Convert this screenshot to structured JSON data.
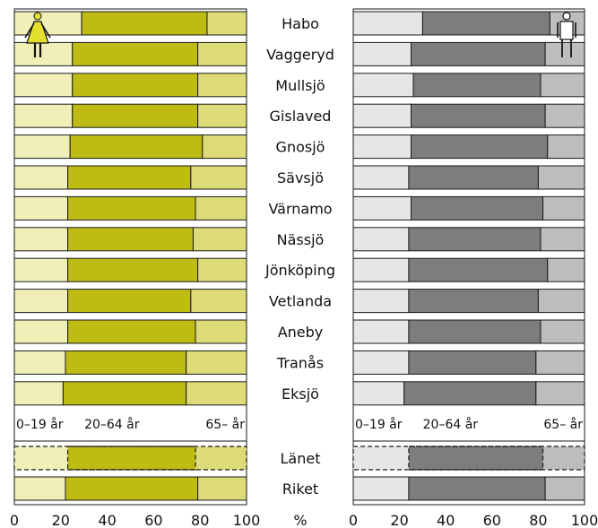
{
  "chart_data": {
    "type": "bar",
    "stacked": true,
    "orientation": "horizontal",
    "unit_label": "%",
    "xlim": [
      0,
      100
    ],
    "xticks": [
      "0",
      "20",
      "40",
      "60",
      "80",
      "100"
    ],
    "segment_labels": [
      "0–19 år",
      "20–64 år",
      "65– år"
    ],
    "categories": [
      "Habo",
      "Vaggeryd",
      "Mullsjö",
      "Gislaved",
      "Gnosjö",
      "Sävsjö",
      "Värnamo",
      "Nässjö",
      "Jönköping",
      "Vetlanda",
      "Aneby",
      "Tranås",
      "Eksjö"
    ],
    "summary_categories": [
      "Länet",
      "Riket"
    ],
    "panels": [
      {
        "side": "left",
        "icon": "woman-icon",
        "colors": [
          "#f0efb8",
          "#bdbb14",
          "#dcdb78"
        ],
        "boundaries": [
          [
            29,
            83
          ],
          [
            25,
            79
          ],
          [
            25,
            79
          ],
          [
            25,
            79
          ],
          [
            24,
            81
          ],
          [
            23,
            76
          ],
          [
            23,
            78
          ],
          [
            23,
            77
          ],
          [
            23,
            79
          ],
          [
            23,
            76
          ],
          [
            23,
            78
          ],
          [
            22,
            74
          ],
          [
            21,
            74
          ]
        ],
        "summary_boundaries": [
          [
            23,
            78
          ],
          [
            22,
            79
          ]
        ]
      },
      {
        "side": "right",
        "icon": "man-icon",
        "colors": [
          "#e6e6e8",
          "#7d7d80",
          "#bdbdc0"
        ],
        "boundaries": [
          [
            30,
            85
          ],
          [
            25,
            83
          ],
          [
            26,
            81
          ],
          [
            25,
            83
          ],
          [
            25,
            84
          ],
          [
            24,
            80
          ],
          [
            25,
            82
          ],
          [
            24,
            81
          ],
          [
            24,
            84
          ],
          [
            24,
            80
          ],
          [
            24,
            81
          ],
          [
            24,
            79
          ],
          [
            22,
            79
          ]
        ],
        "summary_boundaries": [
          [
            24,
            82
          ],
          [
            24,
            83
          ]
        ]
      }
    ]
  }
}
